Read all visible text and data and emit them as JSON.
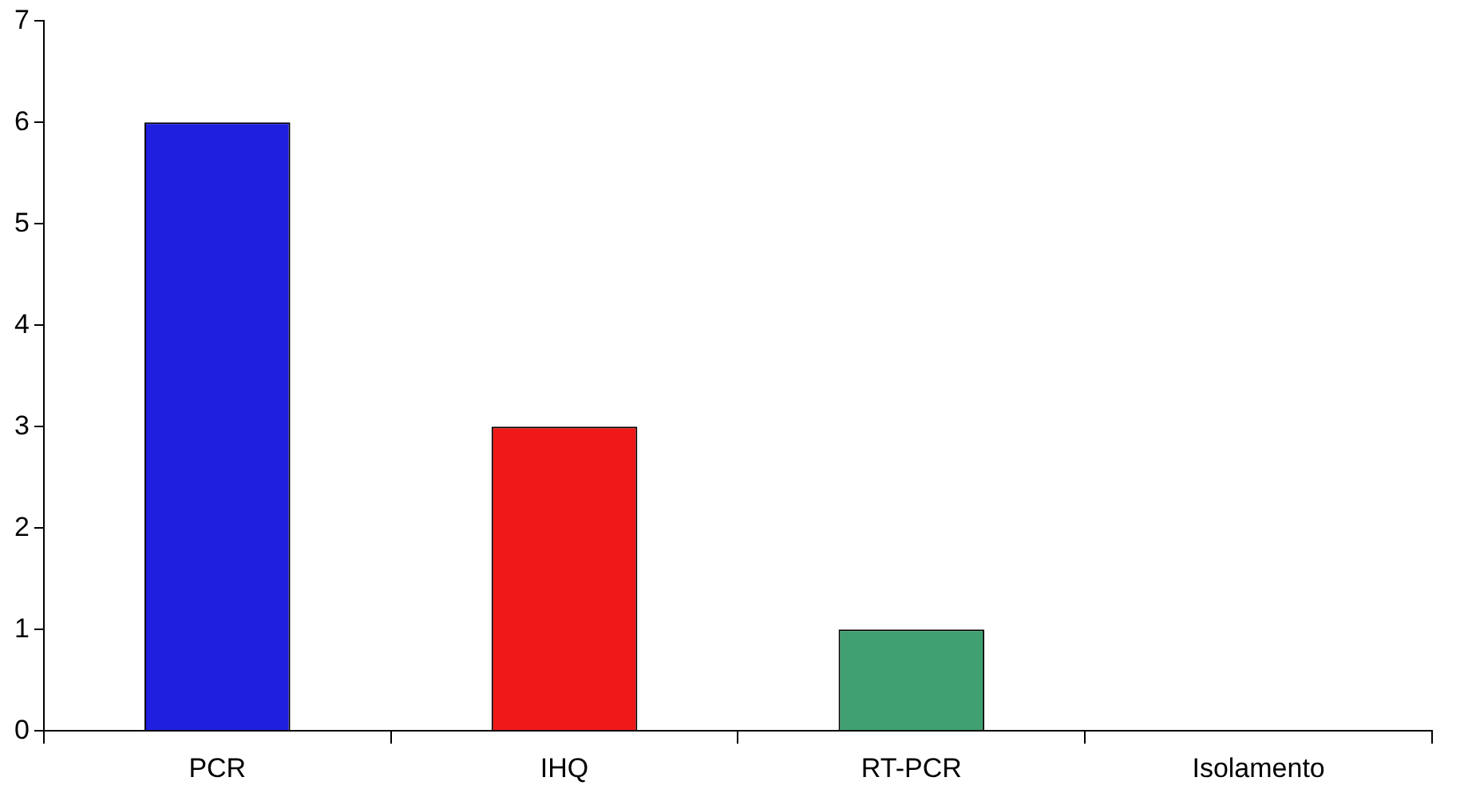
{
  "chart_data": {
    "type": "bar",
    "categories": [
      "PCR",
      "IHQ",
      "RT-PCR",
      "Isolamento"
    ],
    "values": [
      6,
      3,
      1,
      0
    ],
    "colors": [
      "#1f1fe0",
      "#f01818",
      "#40a070",
      "#808080"
    ],
    "ylim": [
      0,
      7
    ],
    "yticks": [
      0,
      1,
      2,
      3,
      4,
      5,
      6,
      7
    ],
    "grid": false,
    "legend": false
  }
}
